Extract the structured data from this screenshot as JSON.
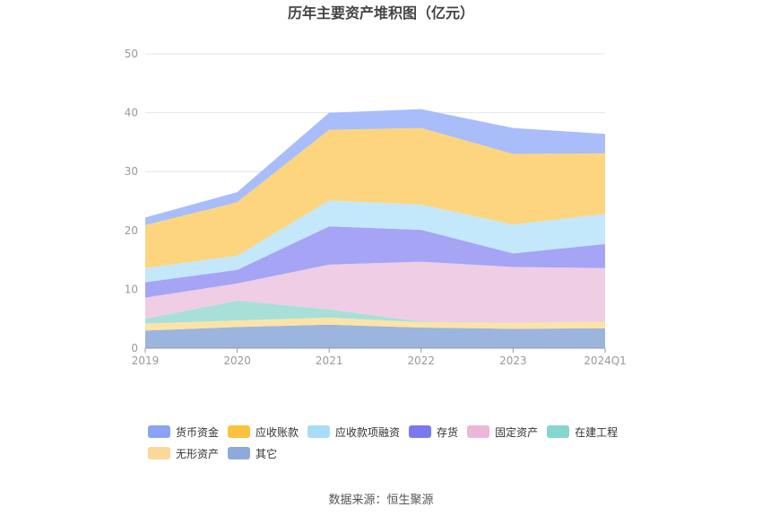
{
  "chart_data": {
    "type": "area",
    "stacked": true,
    "title": "历年主要资产堆积图（亿元）",
    "categories": [
      "2019",
      "2020",
      "2021",
      "2022",
      "2023",
      "2024Q1"
    ],
    "ylim": [
      0,
      50
    ],
    "yticks": [
      0,
      10,
      20,
      30,
      40,
      50
    ],
    "grid": true,
    "legend_position": "bottom",
    "series": [
      {
        "name": "其它",
        "color": "#9bb5de",
        "values": [
          3.0,
          3.6,
          4.0,
          3.5,
          3.3,
          3.4
        ]
      },
      {
        "name": "无形资产",
        "color": "#fce3a8",
        "values": [
          1.2,
          1.1,
          1.2,
          0.9,
          1.0,
          1.1
        ]
      },
      {
        "name": "在建工程",
        "color": "#a8e0d8",
        "values": [
          0.8,
          3.4,
          1.4,
          0.1,
          0.0,
          0.0
        ]
      },
      {
        "name": "固定资产",
        "color": "#efcde4",
        "values": [
          3.6,
          2.9,
          7.6,
          10.2,
          9.5,
          9.1
        ]
      },
      {
        "name": "存货",
        "color": "#a6a4f4",
        "values": [
          2.6,
          2.3,
          6.5,
          5.4,
          2.3,
          4.1
        ]
      },
      {
        "name": "应收款项融资",
        "color": "#c3e7fb",
        "values": [
          2.4,
          2.4,
          4.4,
          4.3,
          4.9,
          5.1
        ]
      },
      {
        "name": "应收账款",
        "color": "#fdd57f",
        "values": [
          7.3,
          9.1,
          12.0,
          13.0,
          12.0,
          10.3
        ]
      },
      {
        "name": "货币资金",
        "color": "#a8bdfa",
        "values": [
          1.3,
          1.7,
          2.9,
          3.2,
          4.4,
          3.3
        ]
      }
    ],
    "legend": [
      {
        "name": "货币资金",
        "color": "#8aa3f5"
      },
      {
        "name": "应收账款",
        "color": "#fcc23f"
      },
      {
        "name": "应收款项融资",
        "color": "#a9dcf7"
      },
      {
        "name": "存货",
        "color": "#7b78f0"
      },
      {
        "name": "固定资产",
        "color": "#ecb6d9"
      },
      {
        "name": "在建工程",
        "color": "#85d6cf"
      },
      {
        "name": "无形资产",
        "color": "#fcd79a"
      },
      {
        "name": "其它",
        "color": "#8eaada"
      }
    ]
  },
  "footer": {
    "source": "数据来源：恒生聚源"
  }
}
